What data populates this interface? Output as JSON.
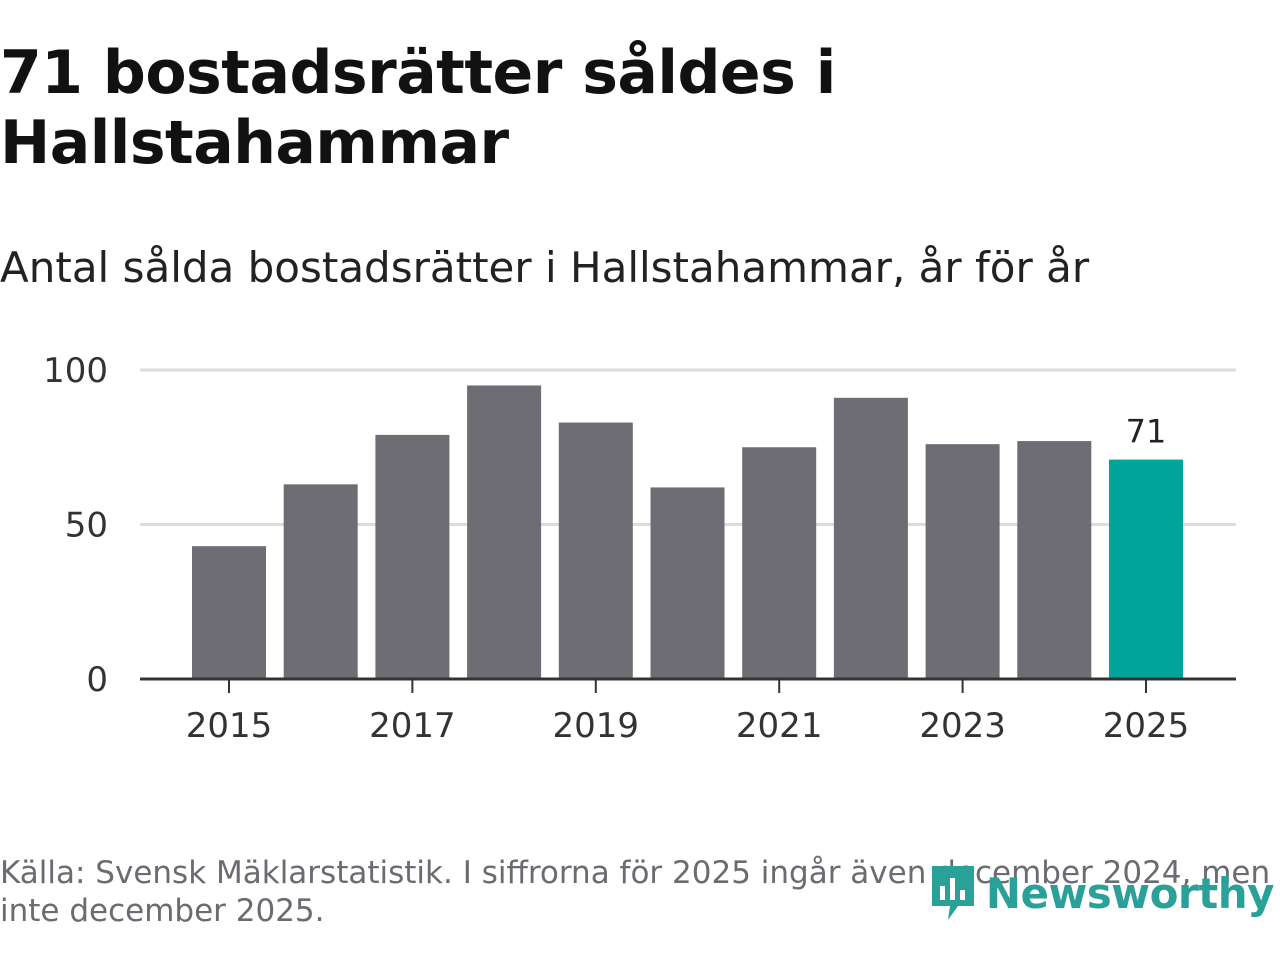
{
  "title": "71 bostadsrätter såldes i Hallstahammar",
  "subtitle": "Antal sålda bostadsrätter i Hallstahammar, år för år",
  "footer": "Källa: Svensk Mäklarstatistik. I siffrorna för 2025 ingår även december 2024, men inte december 2025.",
  "brand": {
    "name": "Newsworthy",
    "icon": "newsworthy-logo-icon"
  },
  "colors": {
    "bar": "#6e6d74",
    "highlight": "#00a59a",
    "grid": "#dcdcdc",
    "axis": "#333333",
    "brand": "#2aa198"
  },
  "chart_data": {
    "type": "bar",
    "categories": [
      "2015",
      "2016",
      "2017",
      "2018",
      "2019",
      "2020",
      "2021",
      "2022",
      "2023",
      "2024",
      "2025"
    ],
    "values": [
      43,
      63,
      79,
      95,
      83,
      62,
      75,
      91,
      76,
      77,
      71
    ],
    "highlight_index": 10,
    "data_labels": [
      {
        "index": 10,
        "text": "71"
      }
    ],
    "x_tick_labels": [
      "2015",
      "2017",
      "2019",
      "2021",
      "2023",
      "2025"
    ],
    "y_ticks": [
      0,
      50,
      100
    ],
    "ylim": [
      0,
      100
    ],
    "xlabel": "",
    "ylabel": "",
    "grid": true
  }
}
